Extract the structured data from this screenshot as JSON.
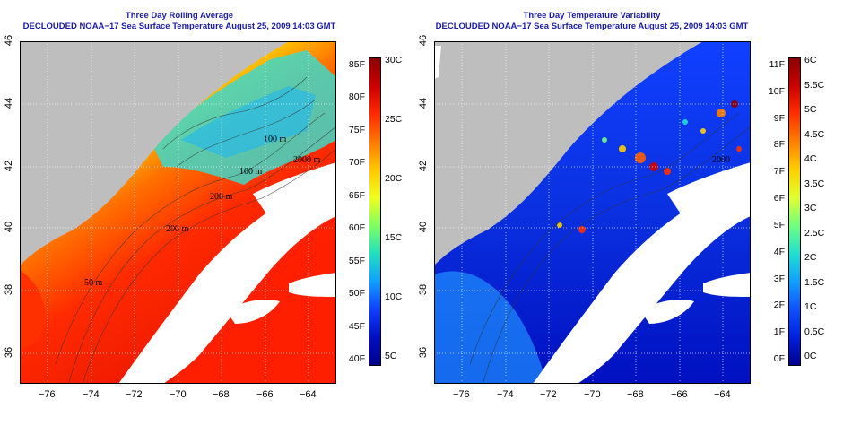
{
  "left_panel": {
    "title_line1": "Three Day Rolling Average",
    "title_line2": "DECLOUDED NOAA−17 Sea Surface Temperature August 25, 2009 14:03 GMT",
    "contour_labels": [
      "100 m",
      "2000 m",
      "100 m",
      "200 m",
      "200 m",
      "50 m"
    ],
    "colorbar": {
      "f_labels": [
        "85F",
        "80F",
        "75F",
        "70F",
        "65F",
        "60F",
        "55F",
        "50F",
        "45F",
        "40F"
      ],
      "c_labels": [
        "30C",
        "25C",
        "20C",
        "15C",
        "10C",
        "5C"
      ],
      "colors_top_to_bottom": [
        "#8b0000",
        "#cc0000",
        "#ff2a00",
        "#ff7a00",
        "#ffc800",
        "#f0ff20",
        "#80ff60",
        "#20e0c0",
        "#10a0ff",
        "#1040ff",
        "#0010c0",
        "#00008b"
      ]
    }
  },
  "right_panel": {
    "title_line1": "Three Day Temperature Variability",
    "title_line2": "DECLOUDED NOAA−17 Sea Surface Temperature August 25, 2009 14:03 GMT",
    "contour_labels": [
      "2000"
    ],
    "colorbar": {
      "f_labels": [
        "11F",
        "10F",
        "9F",
        "8F",
        "7F",
        "6F",
        "5F",
        "4F",
        "3F",
        "2F",
        "1F",
        "0F"
      ],
      "c_labels": [
        "6C",
        "5.5C",
        "5C",
        "4.5C",
        "4C",
        "3.5C",
        "3C",
        "2.5C",
        "2C",
        "1.5C",
        "1C",
        "0.5C",
        "0C"
      ],
      "colors_top_to_bottom": [
        "#8b0000",
        "#cc0000",
        "#ff3000",
        "#ff8000",
        "#ffd000",
        "#e0ff30",
        "#70ff80",
        "#20e0d0",
        "#10a0ff",
        "#1050ff",
        "#0020e0",
        "#00008b"
      ]
    }
  },
  "axes": {
    "lon_ticks": [
      "−76",
      "−74",
      "−72",
      "−70",
      "−68",
      "−66",
      "−64"
    ],
    "lat_ticks": [
      "36",
      "38",
      "40",
      "42",
      "44",
      "46"
    ]
  },
  "colors": {
    "title": "#1a1aa8",
    "land": "#bebebe",
    "cloud": "#ffffff"
  }
}
